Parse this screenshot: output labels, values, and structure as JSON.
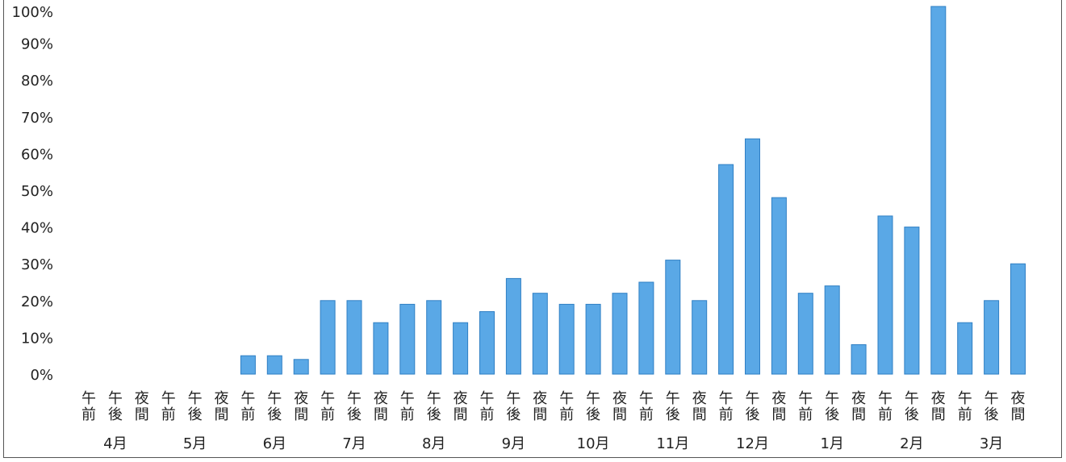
{
  "chart_data": {
    "type": "bar",
    "title": "",
    "xlabel": "",
    "ylabel": "",
    "ylim": [
      0,
      1
    ],
    "y_ticks": [
      "0%",
      "10%",
      "20%",
      "30%",
      "40%",
      "50%",
      "60%",
      "70%",
      "80%",
      "90%",
      "100%"
    ],
    "grid": false,
    "legend": "none",
    "bar_color": "#5aa8e6",
    "bar_edge_color": "#2f7fc4",
    "months": [
      "4月",
      "5月",
      "6月",
      "7月",
      "8月",
      "9月",
      "10月",
      "11月",
      "12月",
      "1月",
      "2月",
      "3月"
    ],
    "periods": [
      "午前",
      "午後",
      "夜間"
    ],
    "categories": [
      "4月 午前",
      "4月 午後",
      "4月 夜間",
      "5月 午前",
      "5月 午後",
      "5月 夜間",
      "6月 午前",
      "6月 午後",
      "6月 夜間",
      "7月 午前",
      "7月 午後",
      "7月 夜間",
      "8月 午前",
      "8月 午後",
      "8月 夜間",
      "9月 午前",
      "9月 午後",
      "9月 夜間",
      "10月 午前",
      "10月 午後",
      "10月 夜間",
      "11月 午前",
      "11月 午後",
      "11月 夜間",
      "12月 午前",
      "12月 午後",
      "12月 夜間",
      "1月 午前",
      "1月 午後",
      "1月 夜間",
      "2月 午前",
      "2月 午後",
      "2月 夜間",
      "3月 午前",
      "3月 午後",
      "3月 夜間"
    ],
    "values": [
      0,
      0,
      0,
      0,
      0,
      0,
      0.05,
      0.05,
      0.04,
      0.2,
      0.2,
      0.14,
      0.19,
      0.2,
      0.14,
      0.17,
      0.26,
      0.22,
      0.19,
      0.19,
      0.22,
      0.25,
      0.31,
      0.2,
      0.57,
      0.64,
      0.48,
      0.22,
      0.24,
      0.08,
      0.43,
      0.4,
      1.0,
      0.14,
      0.2,
      0.3
    ]
  }
}
